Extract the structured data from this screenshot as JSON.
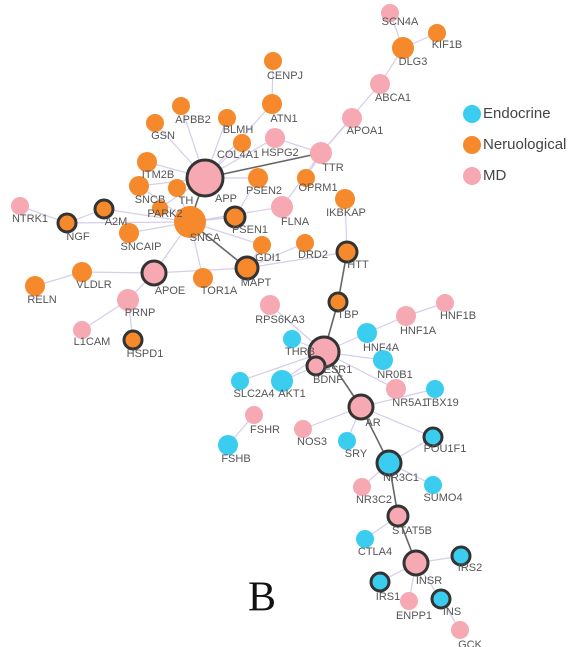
{
  "panel_label": "B",
  "legend": [
    {
      "label": "Endocrine",
      "color": "#3bcdf0"
    },
    {
      "label": "Neruological",
      "color": "#f5892b"
    },
    {
      "label": "MD",
      "color": "#f6a9b2"
    }
  ],
  "nodes": [
    {
      "label": "SCN4A",
      "group": "MD"
    },
    {
      "label": "KIF1B",
      "group": "Neruological"
    },
    {
      "label": "DLG3",
      "group": "Neruological"
    },
    {
      "label": "ABCA1",
      "group": "MD"
    },
    {
      "label": "CENPJ",
      "group": "Neruological"
    },
    {
      "label": "ATN1",
      "group": "Neruological"
    },
    {
      "label": "APBB2",
      "group": "Neruological"
    },
    {
      "label": "BLMH",
      "group": "Neruological"
    },
    {
      "label": "GSN",
      "group": "Neruological"
    },
    {
      "label": "APOA1",
      "group": "MD"
    },
    {
      "label": "HSPG2",
      "group": "MD"
    },
    {
      "label": "COL4A1",
      "group": "Neruological"
    },
    {
      "label": "TTR",
      "group": "MD"
    },
    {
      "label": "ITM2B",
      "group": "Neruological"
    },
    {
      "label": "APP",
      "group": "MD",
      "outlined": true
    },
    {
      "label": "PSEN2",
      "group": "Neruological"
    },
    {
      "label": "OPRM1",
      "group": "Neruological"
    },
    {
      "label": "SNCB",
      "group": "Neruological"
    },
    {
      "label": "TH",
      "group": "Neruological"
    },
    {
      "label": "PARK2",
      "group": "Neruological"
    },
    {
      "label": "NTRK1",
      "group": "MD"
    },
    {
      "label": "A2M",
      "group": "Neruological",
      "outlined": true
    },
    {
      "label": "NGF",
      "group": "Neruological",
      "outlined": true
    },
    {
      "label": "IKBKAP",
      "group": "Neruological"
    },
    {
      "label": "FLNA",
      "group": "MD"
    },
    {
      "label": "PSEN1",
      "group": "Neruological",
      "outlined": true
    },
    {
      "label": "SNCA",
      "group": "Neruological"
    },
    {
      "label": "SNCAIP",
      "group": "Neruological"
    },
    {
      "label": "GDI1",
      "group": "Neruological"
    },
    {
      "label": "DRD2",
      "group": "Neruological"
    },
    {
      "label": "HTT",
      "group": "Neruological",
      "outlined": true
    },
    {
      "label": "VLDLR",
      "group": "Neruological"
    },
    {
      "label": "APOE",
      "group": "MD",
      "outlined": true
    },
    {
      "label": "TOR1A",
      "group": "Neruological"
    },
    {
      "label": "MAPT",
      "group": "Neruological",
      "outlined": true
    },
    {
      "label": "RELN",
      "group": "Neruological"
    },
    {
      "label": "PRNP",
      "group": "MD"
    },
    {
      "label": "RPS6KA3",
      "group": "MD"
    },
    {
      "label": "TBP",
      "group": "Neruological",
      "outlined": true
    },
    {
      "label": "HNF1B",
      "group": "MD"
    },
    {
      "label": "HNF1A",
      "group": "MD"
    },
    {
      "label": "L1CAM",
      "group": "MD"
    },
    {
      "label": "HSPD1",
      "group": "Neruological",
      "outlined": true
    },
    {
      "label": "THRB",
      "group": "Endocrine"
    },
    {
      "label": "HNF4A",
      "group": "Endocrine"
    },
    {
      "label": "ESR1",
      "group": "MD",
      "outlined": true
    },
    {
      "label": "NR0B1",
      "group": "Endocrine"
    },
    {
      "label": "SLC2A4",
      "group": "Endocrine"
    },
    {
      "label": "AKT1",
      "group": "Endocrine"
    },
    {
      "label": "BDNF",
      "group": "MD",
      "outlined": true
    },
    {
      "label": "NR5A1",
      "group": "MD"
    },
    {
      "label": "TBX19",
      "group": "Endocrine"
    },
    {
      "label": "AR",
      "group": "MD",
      "outlined": true
    },
    {
      "label": "FSHR",
      "group": "MD"
    },
    {
      "label": "NOS3",
      "group": "MD"
    },
    {
      "label": "POU1F1",
      "group": "Endocrine",
      "outlined": true
    },
    {
      "label": "SRY",
      "group": "Endocrine"
    },
    {
      "label": "FSHB",
      "group": "Endocrine"
    },
    {
      "label": "NR3C1",
      "group": "Endocrine",
      "outlined": true
    },
    {
      "label": "SUMO4",
      "group": "Endocrine"
    },
    {
      "label": "NR3C2",
      "group": "MD"
    },
    {
      "label": "STAT5B",
      "group": "MD",
      "outlined": true
    },
    {
      "label": "CTLA4",
      "group": "Endocrine"
    },
    {
      "label": "INSR",
      "group": "MD",
      "outlined": true
    },
    {
      "label": "IRS2",
      "group": "Endocrine",
      "outlined": true
    },
    {
      "label": "IRS1",
      "group": "Endocrine",
      "outlined": true
    },
    {
      "label": "INS",
      "group": "Endocrine",
      "outlined": true
    },
    {
      "label": "ENPP1",
      "group": "MD"
    },
    {
      "label": "GCK",
      "group": "MD"
    }
  ]
}
